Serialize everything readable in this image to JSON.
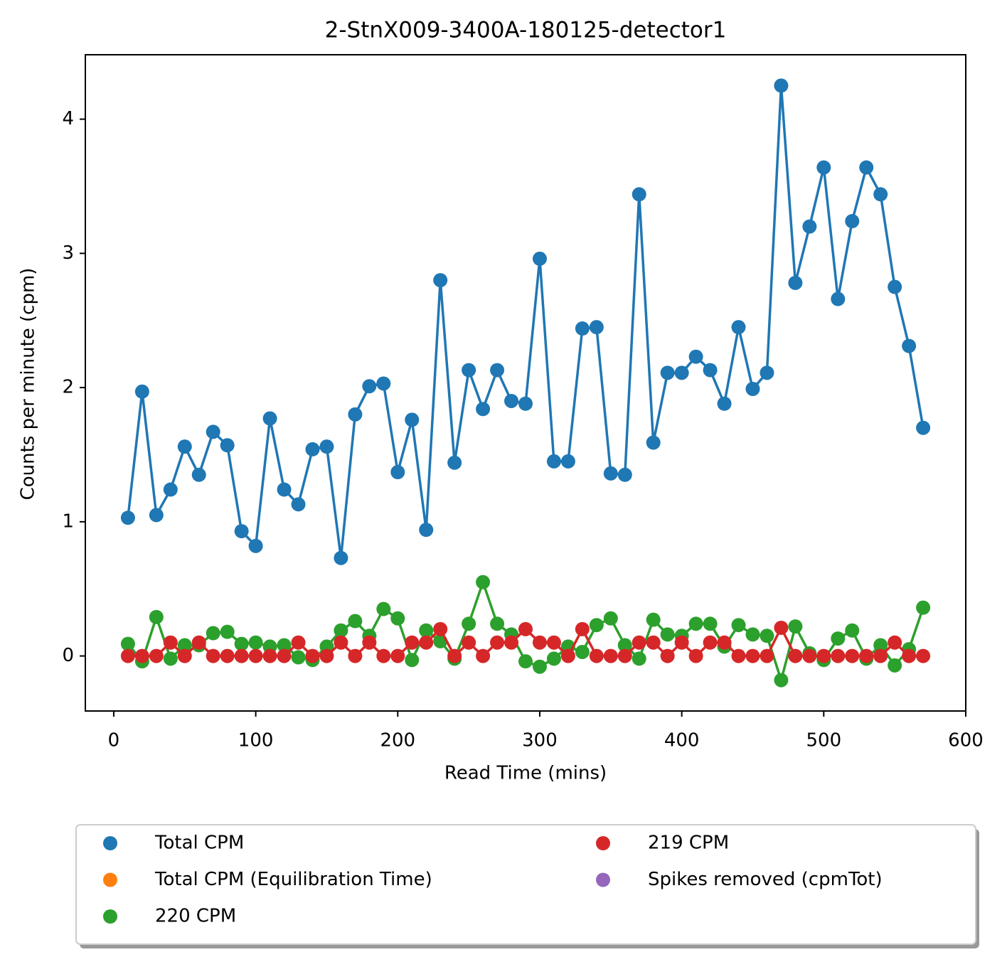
{
  "chart_data": {
    "type": "line",
    "title": "2-StnX009-3400A-180125-detector1",
    "xlabel": "Read Time (mins)",
    "ylabel": "Counts per minute (cpm)",
    "xlim": [
      -20,
      600
    ],
    "xticks": [
      0,
      100,
      200,
      300,
      400,
      500,
      600
    ],
    "ylim": [
      -0.41,
      4.48
    ],
    "yticks": [
      0,
      1,
      2,
      3,
      4
    ],
    "legend": "lower center",
    "series": [
      {
        "name": "Total CPM",
        "color": "#1f77b4",
        "x": [
          10,
          20,
          30,
          40,
          50,
          60,
          70,
          80,
          90,
          100,
          110,
          120,
          130,
          140,
          150,
          160,
          170,
          180,
          190,
          200,
          210,
          220,
          230,
          240,
          250,
          260,
          270,
          280,
          290,
          300,
          310,
          320,
          330,
          340,
          350,
          360,
          370,
          380,
          390,
          400,
          410,
          420,
          430,
          440,
          450,
          460,
          470,
          480,
          490,
          500,
          510,
          520,
          530,
          540,
          550,
          560,
          570
        ],
        "values": [
          1.03,
          1.97,
          1.05,
          1.24,
          1.56,
          1.35,
          1.67,
          1.57,
          0.93,
          0.82,
          1.77,
          1.24,
          1.13,
          1.54,
          1.56,
          0.73,
          1.8,
          2.01,
          2.03,
          1.37,
          1.76,
          0.94,
          2.8,
          1.44,
          2.13,
          1.84,
          2.13,
          1.9,
          1.88,
          2.96,
          1.45,
          1.45,
          2.44,
          2.45,
          1.36,
          1.35,
          3.44,
          1.59,
          2.11,
          2.11,
          2.23,
          2.13,
          1.88,
          2.45,
          1.99,
          2.11,
          4.25,
          2.78,
          3.2,
          3.64,
          2.66,
          3.24,
          3.64,
          3.44,
          2.75,
          2.31,
          1.7
        ]
      },
      {
        "name": "Total CPM (Equilibration Time)",
        "color": "#ff7f0e",
        "x": [],
        "values": []
      },
      {
        "name": "220 CPM",
        "color": "#2ca02c",
        "x": [
          10,
          20,
          30,
          40,
          50,
          60,
          70,
          80,
          90,
          100,
          110,
          120,
          130,
          140,
          150,
          160,
          170,
          180,
          190,
          200,
          210,
          220,
          230,
          240,
          250,
          260,
          270,
          280,
          290,
          300,
          310,
          320,
          330,
          340,
          350,
          360,
          370,
          380,
          390,
          400,
          410,
          420,
          430,
          440,
          450,
          460,
          470,
          480,
          490,
          500,
          510,
          520,
          530,
          540,
          550,
          560,
          570
        ],
        "values": [
          0.09,
          -0.04,
          0.29,
          -0.02,
          0.08,
          0.08,
          0.17,
          0.18,
          0.09,
          0.1,
          0.07,
          0.08,
          -0.01,
          -0.03,
          0.07,
          0.19,
          0.26,
          0.15,
          0.35,
          0.28,
          -0.03,
          0.19,
          0.11,
          -0.02,
          0.24,
          0.55,
          0.24,
          0.16,
          -0.04,
          -0.08,
          -0.02,
          0.07,
          0.03,
          0.23,
          0.28,
          0.08,
          -0.02,
          0.27,
          0.16,
          0.15,
          0.24,
          0.24,
          0.07,
          0.23,
          0.16,
          0.15,
          -0.18,
          0.22,
          0.02,
          -0.03,
          0.13,
          0.19,
          -0.02,
          0.08,
          -0.07,
          0.05,
          0.36
        ]
      },
      {
        "name": "219 CPM",
        "color": "#d62728",
        "x": [
          10,
          20,
          30,
          40,
          50,
          60,
          70,
          80,
          90,
          100,
          110,
          120,
          130,
          140,
          150,
          160,
          170,
          180,
          190,
          200,
          210,
          220,
          230,
          240,
          250,
          260,
          270,
          280,
          290,
          300,
          310,
          320,
          330,
          340,
          350,
          360,
          370,
          380,
          390,
          400,
          410,
          420,
          430,
          440,
          450,
          460,
          470,
          480,
          490,
          500,
          510,
          520,
          530,
          540,
          550,
          560,
          570
        ],
        "values": [
          0,
          0,
          0,
          0.1,
          0,
          0.1,
          0,
          0,
          0,
          0,
          0,
          0,
          0.1,
          0,
          0,
          0.1,
          0,
          0.1,
          0,
          0,
          0.1,
          0.1,
          0.2,
          0,
          0.1,
          0,
          0.1,
          0.1,
          0.2,
          0.1,
          0.1,
          0,
          0.2,
          0,
          0,
          0,
          0.1,
          0.1,
          0,
          0.1,
          0,
          0.1,
          0.1,
          0,
          0,
          0,
          0.21,
          0,
          0,
          0,
          0,
          0,
          0,
          0,
          0.1,
          0,
          0
        ]
      },
      {
        "name": "Spikes removed (cpmTot)",
        "color": "#9467bd",
        "x": [],
        "values": []
      }
    ]
  }
}
